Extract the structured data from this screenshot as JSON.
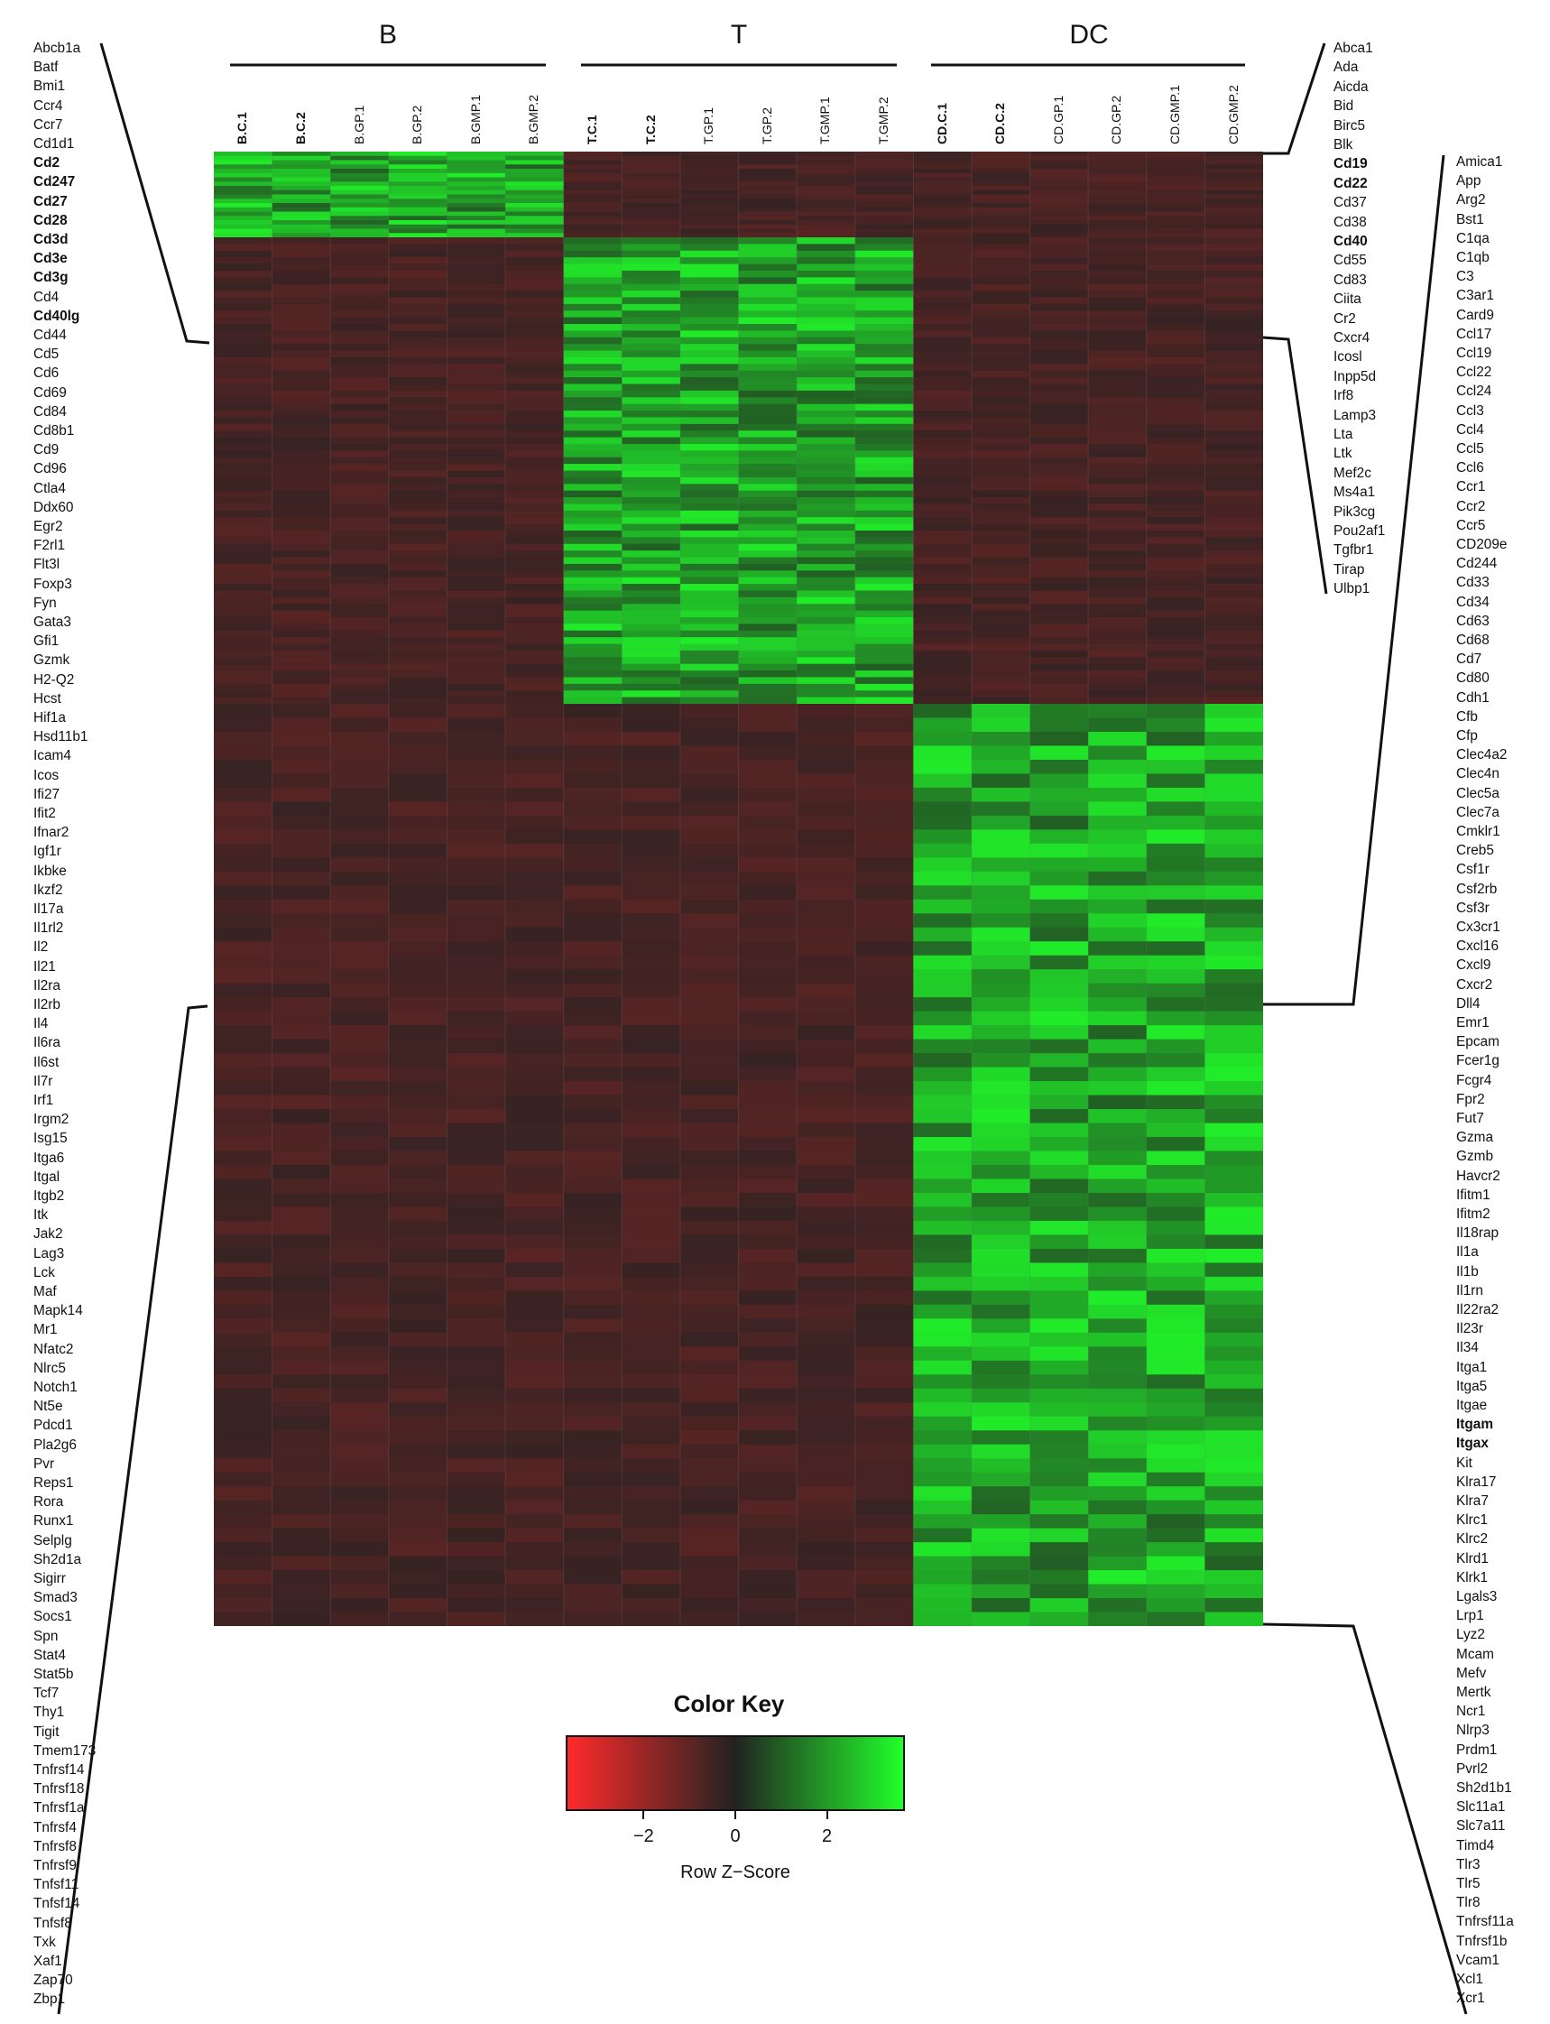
{
  "colors": {
    "low": "#ff2a2a",
    "mid": "#222222",
    "high": "#21ff2a"
  },
  "chart_data": {
    "type": "heatmap",
    "groups": [
      "B",
      "T",
      "DC"
    ],
    "columns": [
      {
        "label": "B.C.1",
        "bold": true
      },
      {
        "label": "B.C.2",
        "bold": true
      },
      {
        "label": "B.GP.1",
        "bold": false
      },
      {
        "label": "B.GP.2",
        "bold": false
      },
      {
        "label": "B.GMP.1",
        "bold": false
      },
      {
        "label": "B.GMP.2",
        "bold": false
      },
      {
        "label": "T.C.1",
        "bold": true
      },
      {
        "label": "T.C.2",
        "bold": true
      },
      {
        "label": "T.GP.1",
        "bold": false
      },
      {
        "label": "T.GP.2",
        "bold": false
      },
      {
        "label": "T.GMP.1",
        "bold": false
      },
      {
        "label": "T.GMP.2",
        "bold": false
      },
      {
        "label": "CD.C.1",
        "bold": true
      },
      {
        "label": "CD.C.2",
        "bold": true
      },
      {
        "label": "CD.GP.1",
        "bold": false
      },
      {
        "label": "CD.GP.2",
        "bold": false
      },
      {
        "label": "CD.GMP.1",
        "bold": false
      },
      {
        "label": "CD.GMP.2",
        "bold": false
      }
    ],
    "clusters": [
      {
        "name": "B",
        "high_group": 0,
        "rows": 20
      },
      {
        "name": "T",
        "high_group": 1,
        "rows": 70
      },
      {
        "name": "DC",
        "high_group": 2,
        "rows": 66
      }
    ],
    "gene_lists": {
      "left": [
        {
          "t": "Abcb1a"
        },
        {
          "t": "Batf"
        },
        {
          "t": "Bmi1"
        },
        {
          "t": "Ccr4"
        },
        {
          "t": "Ccr7"
        },
        {
          "t": "Cd1d1"
        },
        {
          "t": "Cd2",
          "b": true
        },
        {
          "t": "Cd247",
          "b": true
        },
        {
          "t": "Cd27",
          "b": true
        },
        {
          "t": "Cd28",
          "b": true
        },
        {
          "t": "Cd3d",
          "b": true
        },
        {
          "t": "Cd3e",
          "b": true
        },
        {
          "t": "Cd3g",
          "b": true
        },
        {
          "t": "Cd4"
        },
        {
          "t": "Cd40lg",
          "b": true
        },
        {
          "t": "Cd44"
        },
        {
          "t": "Cd5"
        },
        {
          "t": "Cd6"
        },
        {
          "t": "Cd69"
        },
        {
          "t": "Cd84"
        },
        {
          "t": "Cd8b1"
        },
        {
          "t": "Cd9"
        },
        {
          "t": "Cd96"
        },
        {
          "t": "Ctla4"
        },
        {
          "t": "Ddx60"
        },
        {
          "t": "Egr2"
        },
        {
          "t": "F2rl1"
        },
        {
          "t": "Flt3l"
        },
        {
          "t": "Foxp3"
        },
        {
          "t": "Fyn"
        },
        {
          "t": "Gata3"
        },
        {
          "t": "Gfi1"
        },
        {
          "t": "Gzmk"
        },
        {
          "t": "H2-Q2"
        },
        {
          "t": "Hcst"
        },
        {
          "t": "Hif1a"
        },
        {
          "t": "Hsd11b1"
        },
        {
          "t": "Icam4"
        },
        {
          "t": "Icos"
        },
        {
          "t": "Ifi27"
        },
        {
          "t": "Ifit2"
        },
        {
          "t": "Ifnar2"
        },
        {
          "t": "Igf1r"
        },
        {
          "t": "Ikbke"
        },
        {
          "t": "Ikzf2"
        },
        {
          "t": "Il17a"
        },
        {
          "t": "Il1rl2"
        },
        {
          "t": "Il2"
        },
        {
          "t": "Il21"
        },
        {
          "t": "Il2ra"
        },
        {
          "t": "Il2rb"
        },
        {
          "t": "Il4"
        },
        {
          "t": "Il6ra"
        },
        {
          "t": "Il6st"
        },
        {
          "t": "Il7r"
        },
        {
          "t": "Irf1"
        },
        {
          "t": "Irgm2"
        },
        {
          "t": "Isg15"
        },
        {
          "t": "Itga6"
        },
        {
          "t": "Itgal"
        },
        {
          "t": "Itgb2"
        },
        {
          "t": "Itk"
        },
        {
          "t": "Jak2"
        },
        {
          "t": "Lag3"
        },
        {
          "t": "Lck"
        },
        {
          "t": "Maf"
        },
        {
          "t": "Mapk14"
        },
        {
          "t": "Mr1"
        },
        {
          "t": "Nfatc2"
        },
        {
          "t": "Nlrc5"
        },
        {
          "t": "Notch1"
        },
        {
          "t": "Nt5e"
        },
        {
          "t": "Pdcd1"
        },
        {
          "t": "Pla2g6"
        },
        {
          "t": "Pvr"
        },
        {
          "t": "Reps1"
        },
        {
          "t": "Rora"
        },
        {
          "t": "Runx1"
        },
        {
          "t": "Selplg"
        },
        {
          "t": "Sh2d1a"
        },
        {
          "t": "Sigirr"
        },
        {
          "t": "Smad3"
        },
        {
          "t": "Socs1"
        },
        {
          "t": "Spn"
        },
        {
          "t": "Stat4"
        },
        {
          "t": "Stat5b"
        },
        {
          "t": "Tcf7"
        },
        {
          "t": "Thy1"
        },
        {
          "t": "Tigit"
        },
        {
          "t": "Tmem173"
        },
        {
          "t": "Tnfrsf14"
        },
        {
          "t": "Tnfrsf18"
        },
        {
          "t": "Tnfrsf1a"
        },
        {
          "t": "Tnfrsf4"
        },
        {
          "t": "Tnfrsf8"
        },
        {
          "t": "Tnfrsf9"
        },
        {
          "t": "Tnfsf11"
        },
        {
          "t": "Tnfsf14"
        },
        {
          "t": "Tnfsf8"
        },
        {
          "t": "Txk"
        },
        {
          "t": "Xaf1"
        },
        {
          "t": "Zap70"
        },
        {
          "t": "Zbp1"
        }
      ],
      "right_top": [
        {
          "t": "Abca1"
        },
        {
          "t": "Ada"
        },
        {
          "t": "Aicda"
        },
        {
          "t": "Bid"
        },
        {
          "t": "Birc5"
        },
        {
          "t": "Blk"
        },
        {
          "t": "Cd19",
          "b": true
        },
        {
          "t": "Cd22",
          "b": true
        },
        {
          "t": "Cd37"
        },
        {
          "t": "Cd38"
        },
        {
          "t": "Cd40",
          "b": true
        },
        {
          "t": "Cd55"
        },
        {
          "t": "Cd83"
        },
        {
          "t": "Ciita"
        },
        {
          "t": "Cr2"
        },
        {
          "t": "Cxcr4"
        },
        {
          "t": "Icosl"
        },
        {
          "t": "Inpp5d"
        },
        {
          "t": "Irf8"
        },
        {
          "t": "Lamp3"
        },
        {
          "t": "Lta"
        },
        {
          "t": "Ltk"
        },
        {
          "t": "Mef2c"
        },
        {
          "t": "Ms4a1"
        },
        {
          "t": "Pik3cg"
        },
        {
          "t": "Pou2af1"
        },
        {
          "t": "Tgfbr1"
        },
        {
          "t": "Tirap"
        },
        {
          "t": "Ulbp1"
        }
      ],
      "right_bottom": [
        {
          "t": "Amica1"
        },
        {
          "t": "App"
        },
        {
          "t": "Arg2"
        },
        {
          "t": "Bst1"
        },
        {
          "t": "C1qa"
        },
        {
          "t": "C1qb"
        },
        {
          "t": "C3"
        },
        {
          "t": "C3ar1"
        },
        {
          "t": "Card9"
        },
        {
          "t": "Ccl17"
        },
        {
          "t": "Ccl19"
        },
        {
          "t": "Ccl22"
        },
        {
          "t": "Ccl24"
        },
        {
          "t": "Ccl3"
        },
        {
          "t": "Ccl4"
        },
        {
          "t": "Ccl5"
        },
        {
          "t": "Ccl6"
        },
        {
          "t": "Ccr1"
        },
        {
          "t": "Ccr2"
        },
        {
          "t": "Ccr5"
        },
        {
          "t": "CD209e"
        },
        {
          "t": "Cd244"
        },
        {
          "t": "Cd33"
        },
        {
          "t": "Cd34"
        },
        {
          "t": "Cd63"
        },
        {
          "t": "Cd68"
        },
        {
          "t": "Cd7"
        },
        {
          "t": "Cd80"
        },
        {
          "t": "Cdh1"
        },
        {
          "t": "Cfb"
        },
        {
          "t": "Cfp"
        },
        {
          "t": "Clec4a2"
        },
        {
          "t": "Clec4n"
        },
        {
          "t": "Clec5a"
        },
        {
          "t": "Clec7a"
        },
        {
          "t": "Cmklr1"
        },
        {
          "t": "Creb5"
        },
        {
          "t": "Csf1r"
        },
        {
          "t": "Csf2rb"
        },
        {
          "t": "Csf3r"
        },
        {
          "t": "Cx3cr1"
        },
        {
          "t": "Cxcl16"
        },
        {
          "t": "Cxcl9"
        },
        {
          "t": "Cxcr2"
        },
        {
          "t": "Dll4"
        },
        {
          "t": "Emr1"
        },
        {
          "t": "Epcam"
        },
        {
          "t": "Fcer1g"
        },
        {
          "t": "Fcgr4"
        },
        {
          "t": "Fpr2"
        },
        {
          "t": "Fut7"
        },
        {
          "t": "Gzma"
        },
        {
          "t": "Gzmb"
        },
        {
          "t": "Havcr2"
        },
        {
          "t": "Ifitm1"
        },
        {
          "t": "Ifitm2"
        },
        {
          "t": "Il18rap"
        },
        {
          "t": "Il1a"
        },
        {
          "t": "Il1b"
        },
        {
          "t": "Il1rn"
        },
        {
          "t": "Il22ra2"
        },
        {
          "t": "Il23r"
        },
        {
          "t": "Il34"
        },
        {
          "t": "Itga1"
        },
        {
          "t": "Itga5"
        },
        {
          "t": "Itgae"
        },
        {
          "t": "Itgam",
          "b": true
        },
        {
          "t": "Itgax",
          "b": true
        },
        {
          "t": "Kit"
        },
        {
          "t": "Klra17"
        },
        {
          "t": "Klra7"
        },
        {
          "t": "Klrc1"
        },
        {
          "t": "Klrc2"
        },
        {
          "t": "Klrd1"
        },
        {
          "t": "Klrk1"
        },
        {
          "t": "Lgals3"
        },
        {
          "t": "Lrp1"
        },
        {
          "t": "Lyz2"
        },
        {
          "t": "Mcam"
        },
        {
          "t": "Mefv"
        },
        {
          "t": "Mertk"
        },
        {
          "t": "Ncr1"
        },
        {
          "t": "Nlrp3"
        },
        {
          "t": "Prdm1"
        },
        {
          "t": "Pvrl2"
        },
        {
          "t": "Sh2d1b1"
        },
        {
          "t": "Slc11a1"
        },
        {
          "t": "Slc7a11"
        },
        {
          "t": "Timd4"
        },
        {
          "t": "Tlr3"
        },
        {
          "t": "Tlr5"
        },
        {
          "t": "Tlr8"
        },
        {
          "t": "Tnfrsf11a"
        },
        {
          "t": "Tnfrsf1b"
        },
        {
          "t": "Vcam1"
        },
        {
          "t": "Xcl1"
        },
        {
          "t": "Xcr1"
        }
      ]
    },
    "legend": {
      "title": "Color Key",
      "xlabel": "Row Z−Score",
      "ticks": [
        "−2",
        "0",
        "2"
      ],
      "tick_values": [
        -2,
        0,
        2
      ],
      "range": [
        -3.7,
        3.7
      ]
    }
  }
}
